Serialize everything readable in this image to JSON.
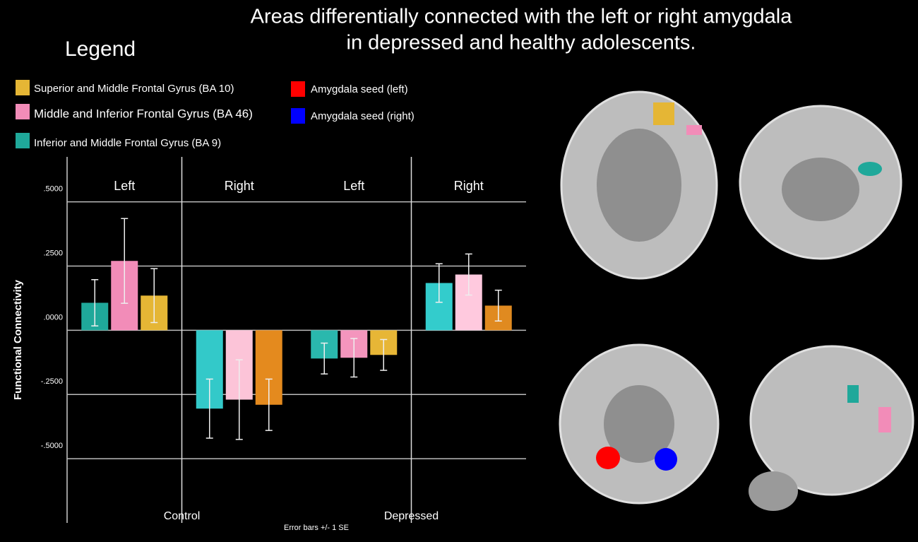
{
  "chart_data": {
    "type": "bar",
    "title": [
      "Areas differentially connected with the left or right amygdala",
      "in depressed and healthy adolescents."
    ],
    "legend_title": "Legend",
    "y_label": "Functional Connectivity",
    "note": "Error bars +/- 1 SE",
    "categories": [
      "Left",
      "Right",
      "Left",
      "Right"
    ],
    "groups": [
      "Control",
      "Depressed"
    ],
    "series": [
      {
        "name": "Superior and Middle Frontal Gyrus (BA 10)",
        "color": "#e5b635",
        "colors": [
          "#e5b635",
          "#e48a1e",
          "#e7b636",
          "#e08a20"
        ],
        "values": [
          0.135,
          -0.29,
          -0.096,
          0.096
        ],
        "errors": [
          0.105,
          0.1,
          0.06,
          0.06
        ]
      },
      {
        "name": "Middle and Inferior Frontal Gyrus (BA 46)",
        "color": "#f28cb8",
        "colors": [
          "#f28cb8",
          "#fcc4d8",
          "#f495bd",
          "#ffc9de"
        ],
        "values": [
          0.27,
          -0.27,
          -0.107,
          0.217
        ],
        "errors": [
          0.165,
          0.155,
          0.075,
          0.08
        ]
      },
      {
        "name": "Inferior and Middle Frontal Gyrus (BA 9)",
        "color": "#1fa89a",
        "colors": [
          "#1fa89a",
          "#33c9c9",
          "#2ab8ad",
          "#33cccc"
        ],
        "values": [
          0.107,
          -0.305,
          -0.11,
          0.184
        ],
        "errors": [
          0.09,
          0.115,
          0.06,
          0.075
        ]
      }
    ],
    "seed_legend": [
      {
        "name": "Amygdala seed (left)",
        "color": "#ff0000"
      },
      {
        "name": "Amygdala seed (right)",
        "color": "#0000ff"
      }
    ],
    "ylim": [
      -0.75,
      0.675
    ],
    "yticks": [
      {
        "value": 0.5,
        "label": ".5000"
      },
      {
        "value": 0.25,
        "label": ".2500"
      },
      {
        "value": 0,
        "label": ".0000"
      },
      {
        "value": -0.25,
        "label": "-.2500"
      },
      {
        "value": -0.5,
        "label": "-.5000"
      }
    ],
    "grid": true
  }
}
